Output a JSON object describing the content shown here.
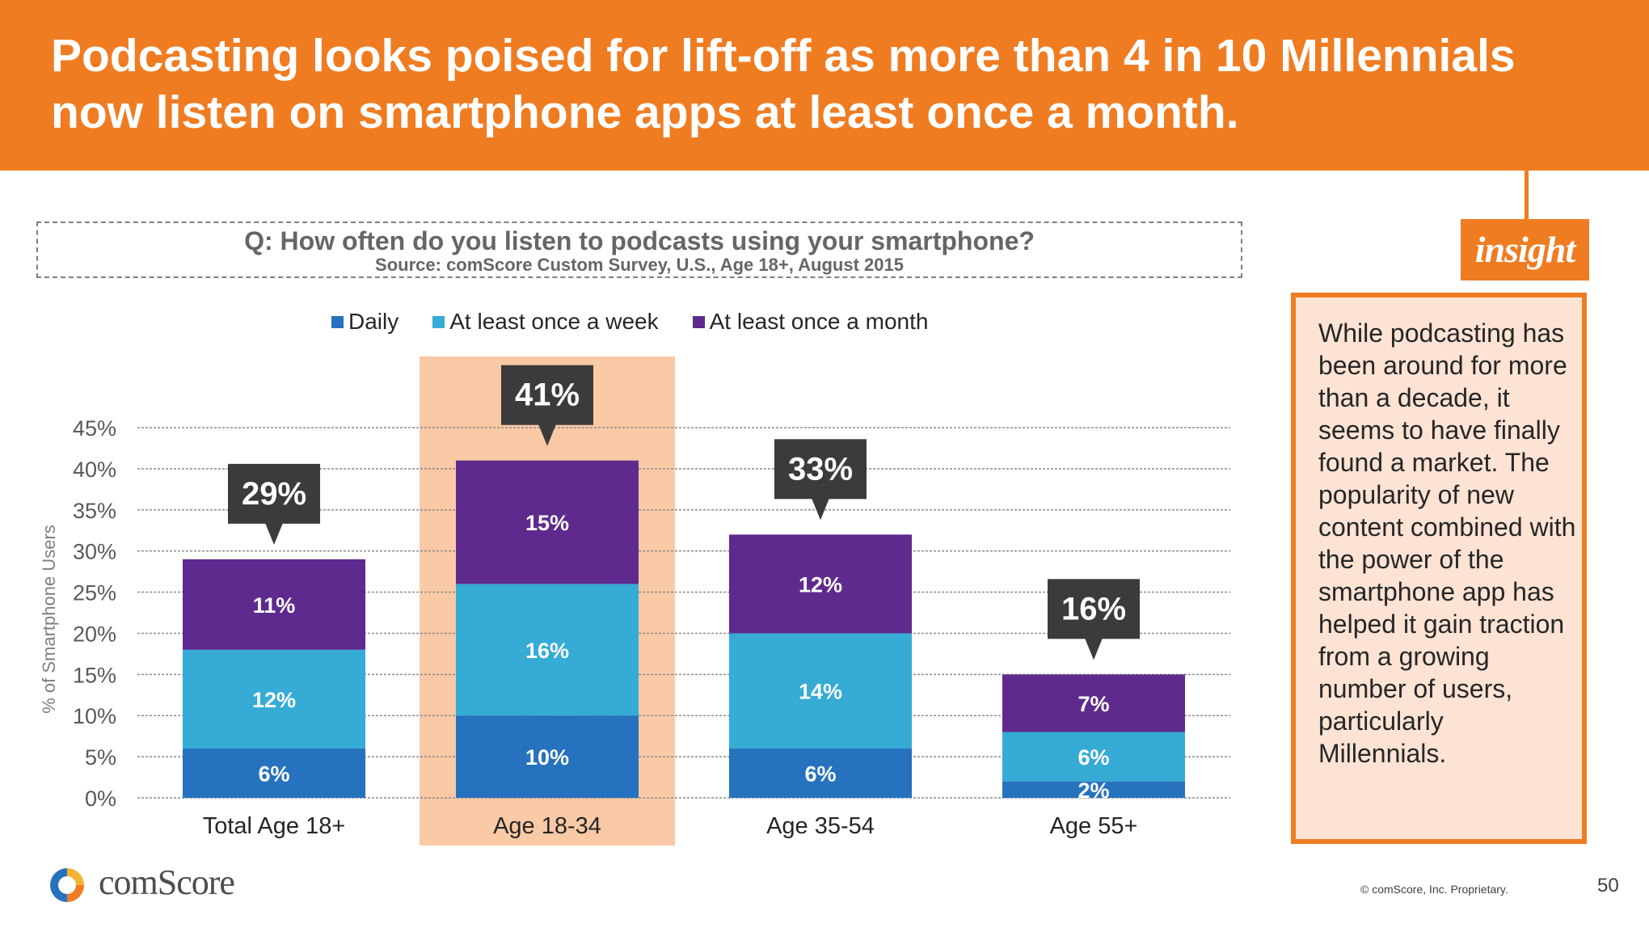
{
  "header": {
    "title": "Podcasting looks poised for lift-off as more than 4 in 10 Millennials now listen on smartphone apps at least once a month."
  },
  "insight": {
    "tag": "insight",
    "text": "While podcasting has been around for more than a decade, it seems to have finally found a market. The popularity of new content combined with the power of the smartphone app has helped it gain traction from a growing number of users, particularly Millennials."
  },
  "colors": {
    "brand_orange": "#F07C22",
    "highlight": "#FAC9A5",
    "daily": "#2672BE",
    "weekly": "#35ABD6",
    "monthly": "#5F2A8E",
    "callout": "#3B3B3B"
  },
  "chart_data": {
    "type": "bar",
    "stacked": true,
    "title": "Q: How often do you listen to podcasts using your smartphone?",
    "subtitle": "Source: comScore Custom Survey, U.S., Age 18+, August 2015",
    "ylabel": "% of Smartphone Users",
    "ylim": [
      0,
      45
    ],
    "yticks": [
      "0%",
      "5%",
      "10%",
      "15%",
      "20%",
      "25%",
      "30%",
      "35%",
      "40%",
      "45%"
    ],
    "categories": [
      "Total Age 18+",
      "Age 18-34",
      "Age 35-54",
      "Age 55+"
    ],
    "highlight_category": "Age 18-34",
    "series": [
      {
        "name": "Daily",
        "values": [
          6,
          10,
          6,
          2
        ],
        "labels": [
          "6%",
          "10%",
          "6%",
          "2%"
        ]
      },
      {
        "name": "At least once a week",
        "values": [
          12,
          16,
          14,
          6
        ],
        "labels": [
          "12%",
          "16%",
          "14%",
          "6%"
        ]
      },
      {
        "name": "At least once a month",
        "values": [
          11,
          15,
          12,
          7
        ],
        "labels": [
          "11%",
          "15%",
          "12%",
          "7%"
        ]
      }
    ],
    "totals": [
      "29%",
      "41%",
      "33%",
      "16%"
    ],
    "legend_position": "top"
  },
  "footer": {
    "logo_text": "comScore",
    "copyright": "© comScore, Inc. Proprietary.",
    "page_number": "50"
  }
}
